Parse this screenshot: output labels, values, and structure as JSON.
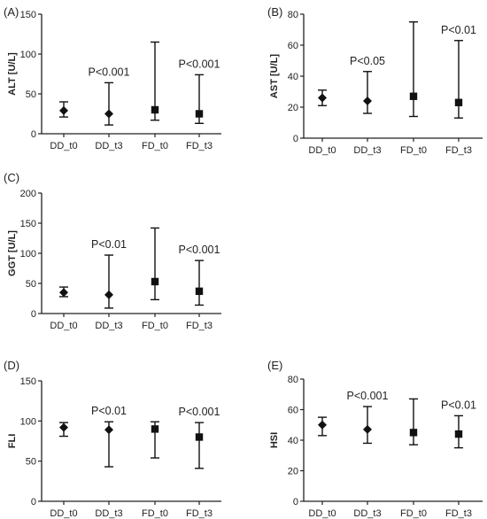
{
  "chart_data": [
    {
      "type": "scatter",
      "panel": "(A)",
      "ylabel": "ALT [U/L]",
      "ylim": [
        0,
        150
      ],
      "yticks": [
        "0",
        "50",
        "100",
        "150"
      ],
      "categories": [
        "DD_t0",
        "DD_t3",
        "FD_t0",
        "FD_t3"
      ],
      "markers": [
        "diamond",
        "diamond",
        "square",
        "square"
      ],
      "values": [
        29,
        25,
        30,
        25
      ],
      "ranges": [
        [
          21,
          40
        ],
        [
          11,
          64
        ],
        [
          17,
          115
        ],
        [
          13,
          74
        ]
      ],
      "annotations": [
        "",
        "P<0.001",
        "",
        "P<0.001"
      ]
    },
    {
      "type": "scatter",
      "panel": "(B)",
      "ylabel": "AST [U/L]",
      "ylim": [
        0,
        80
      ],
      "yticks": [
        "0",
        "20",
        "40",
        "60",
        "80"
      ],
      "categories": [
        "DD_t0",
        "DD_t3",
        "FD_t0",
        "FD_t3"
      ],
      "markers": [
        "diamond",
        "diamond",
        "square",
        "square"
      ],
      "values": [
        26,
        24,
        27,
        23
      ],
      "ranges": [
        [
          21,
          31
        ],
        [
          16,
          43
        ],
        [
          14,
          75
        ],
        [
          13,
          63
        ]
      ],
      "annotations": [
        "",
        "P<0.05",
        "",
        "P<0.01"
      ]
    },
    {
      "type": "scatter",
      "panel": "(C)",
      "ylabel": "GGT [U/L]",
      "ylim": [
        0,
        200
      ],
      "yticks": [
        "0",
        "50",
        "100",
        "150",
        "200"
      ],
      "categories": [
        "DD_t0",
        "DD_t3",
        "FD_t0",
        "FD_t3"
      ],
      "markers": [
        "diamond",
        "diamond",
        "square",
        "square"
      ],
      "values": [
        35,
        31,
        53,
        37
      ],
      "ranges": [
        [
          28,
          44
        ],
        [
          9,
          97
        ],
        [
          23,
          142
        ],
        [
          14,
          88
        ]
      ],
      "annotations": [
        "",
        "P<0.01",
        "",
        "P<0.001"
      ]
    },
    {
      "type": "scatter",
      "panel": "(D)",
      "ylabel": "FLI",
      "ylim": [
        0,
        150
      ],
      "yticks": [
        "0",
        "50",
        "100",
        "150"
      ],
      "categories": [
        "DD_t0",
        "DD_t3",
        "FD_t0",
        "FD_t3"
      ],
      "markers": [
        "diamond",
        "diamond",
        "square",
        "square"
      ],
      "values": [
        92,
        89,
        90,
        80
      ],
      "ranges": [
        [
          81,
          98
        ],
        [
          43,
          99
        ],
        [
          54,
          99
        ],
        [
          41,
          98
        ]
      ],
      "annotations": [
        "",
        "P<0.01",
        "",
        "P<0.001"
      ]
    },
    {
      "type": "scatter",
      "panel": "(E)",
      "ylabel": "HSI",
      "ylim": [
        0,
        80
      ],
      "yticks": [
        "0",
        "20",
        "40",
        "60",
        "80"
      ],
      "categories": [
        "DD_t0",
        "DD_t3",
        "FD_t0",
        "FD_t3"
      ],
      "markers": [
        "diamond",
        "diamond",
        "square",
        "square"
      ],
      "values": [
        50,
        47,
        45,
        44
      ],
      "ranges": [
        [
          43,
          55
        ],
        [
          38,
          62
        ],
        [
          37,
          67
        ],
        [
          35,
          56
        ]
      ],
      "annotations": [
        "",
        "P<0.001",
        "",
        "P<0.01"
      ]
    }
  ]
}
